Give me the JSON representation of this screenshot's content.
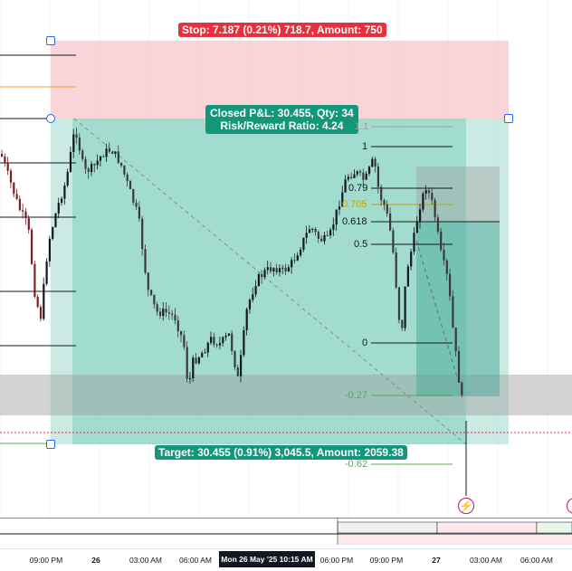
{
  "position_tool": {
    "stop_label": "Stop: 7.187 (0.21%) 718.7, Amount: 750",
    "closed_pnl_label": "Closed P&L: 30.455, Qty: 34",
    "risk_reward_label": "Risk/Reward Ratio: 4.24",
    "target_label": "Target: 30.455 (0.91%) 3,045.5, Amount: 2059.38"
  },
  "fib_levels": [
    {
      "label": "1.1",
      "color": "#9e9e9e"
    },
    {
      "label": "1",
      "color": "#131722"
    },
    {
      "label": "0.79",
      "color": "#131722"
    },
    {
      "label": "0.705",
      "color": "#c9a100"
    },
    {
      "label": "0.618",
      "color": "#131722"
    },
    {
      "label": "0.5",
      "color": "#131722"
    },
    {
      "label": "0",
      "color": "#131722"
    },
    {
      "label": "-0.27",
      "color": "#4caf50"
    },
    {
      "label": "-0.62",
      "color": "#4caf50"
    }
  ],
  "time_axis": {
    "ticks": [
      "09:00 PM",
      "26",
      "03:00 AM",
      "06:00 AM",
      "06:00 PM",
      "09:00 PM",
      "27",
      "03:00 AM",
      "06:00 AM"
    ],
    "cursor_label": "Mon 26 May '25   10:15 AM"
  },
  "colors": {
    "stop_zone": "#f8cdd1",
    "target_zone": "#9fd9cc",
    "bull_candle": "#131722",
    "bear_candle": "#7a1f26",
    "accent": "#2962ff"
  },
  "icons": {
    "alert": "lightning-alert-icon"
  }
}
